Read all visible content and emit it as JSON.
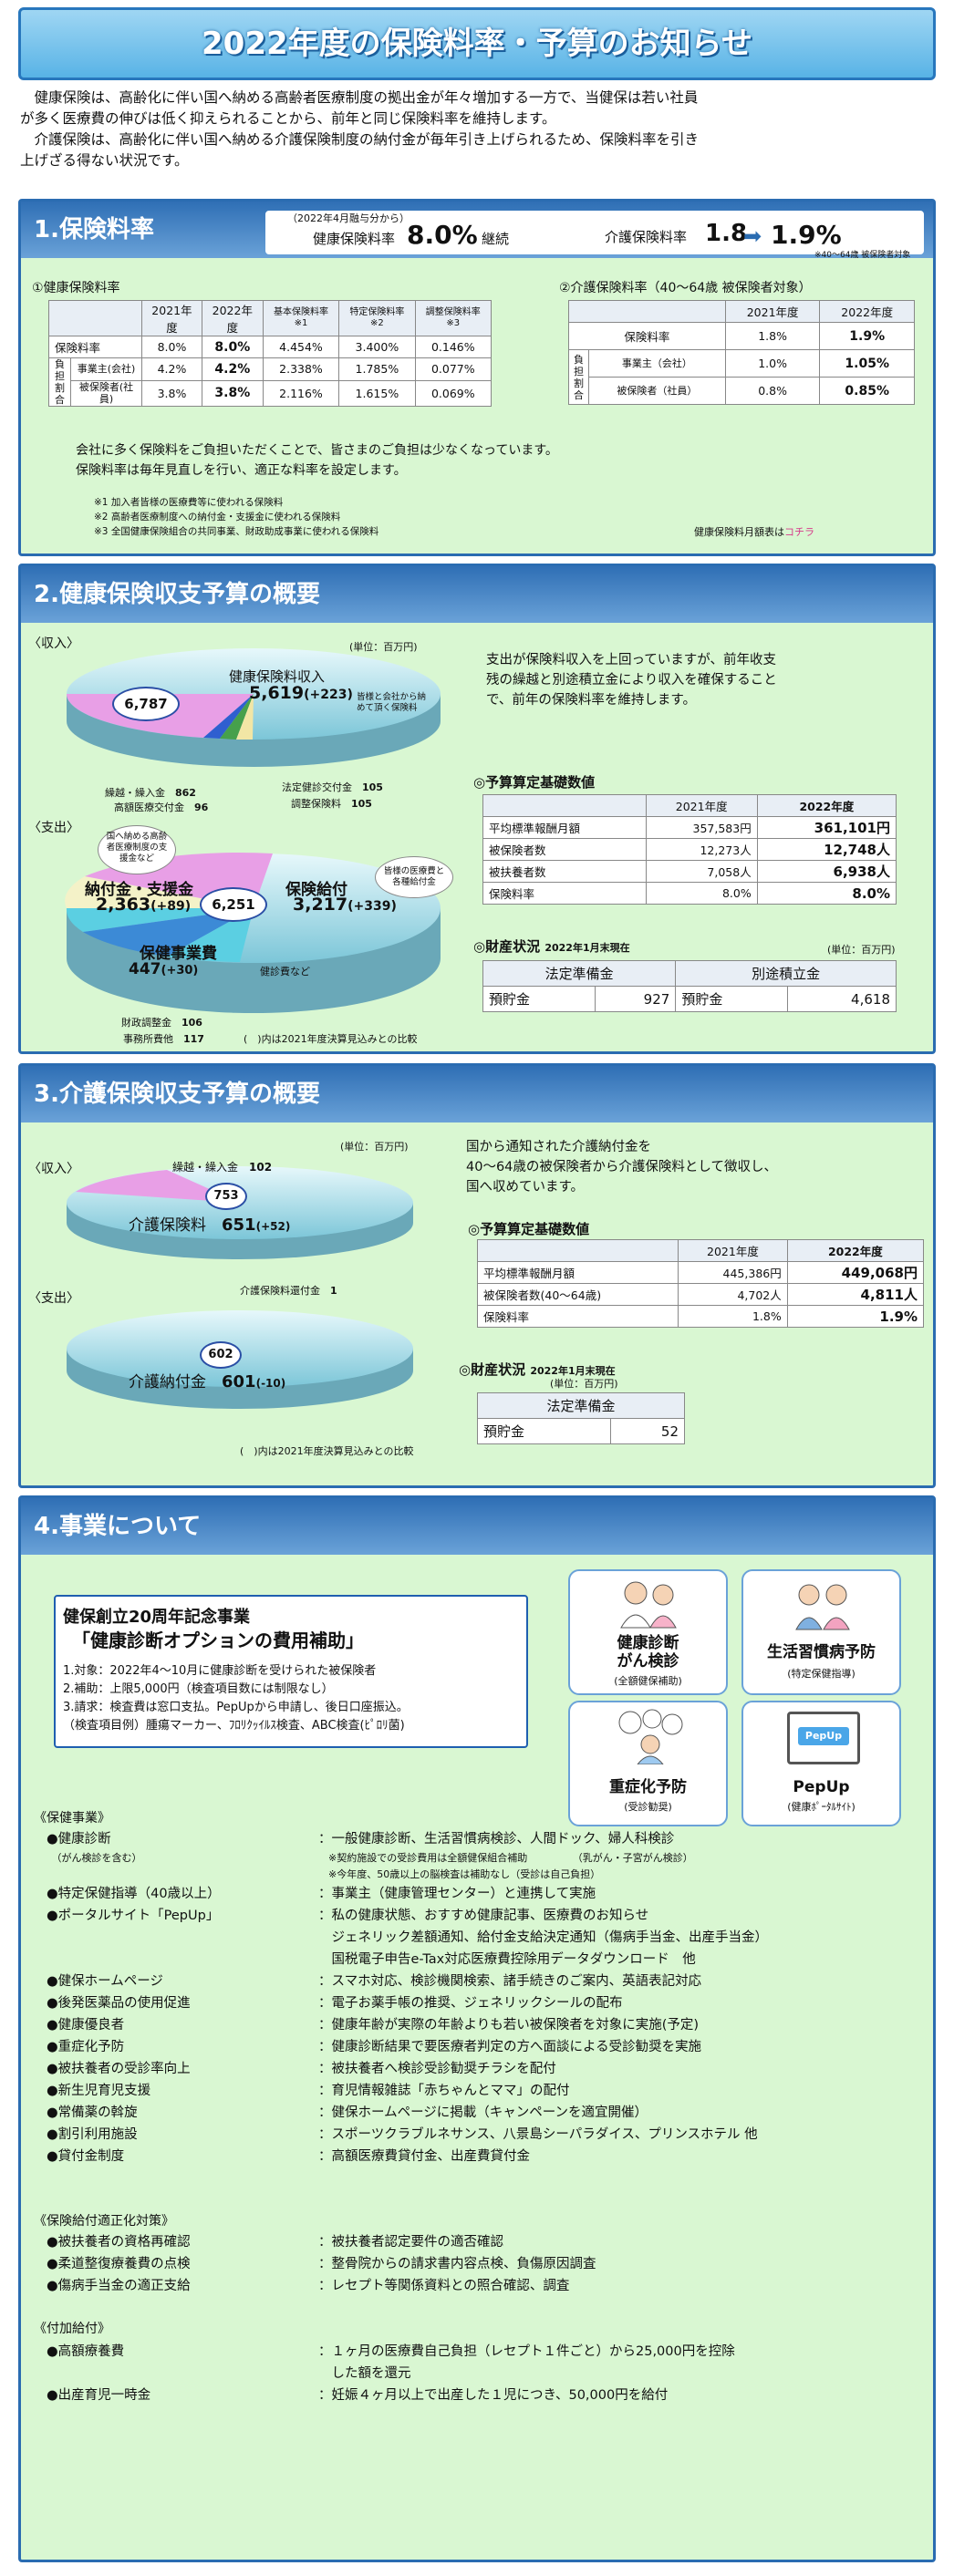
{
  "title": "2022年度の保険料率・予算のお知らせ",
  "intro": [
    "　健康保険は、高齢化に伴い国へ納める高齢者医療制度の拠出金が年々増加する一方で、当健保は若い社員",
    "が多く医療費の伸びは低く抑えられることから、前年と同じ保険料率を維持します。",
    "　介護保険は、高齢化に伴い国へ納める介護保険制度の納付金が毎年引き上げられるため、保険料率を引き",
    "上げざる得ない状況です。"
  ],
  "s1": {
    "title": "1.保険料率",
    "period": "（2022年4月融与分から）",
    "kenpo_label": "健康保険料率",
    "kenpo_rate": "8.0%",
    "kenpo_note": "継続",
    "kaigo_label": "介護保険料率",
    "kaigo_old": "1.8",
    "kaigo_new": "1.9%",
    "kaigo_note": "※40～64歳 被保険者対象",
    "t1_title": "①健康保険料率",
    "t2_title": "②介護保険料率（40～64歳 被保険者対象）",
    "t1": {
      "h": [
        "",
        "",
        "2021年度",
        "2022年度",
        "基本保険料率※1",
        "特定保険料率※2",
        "調整保険料率※3"
      ],
      "rows": [
        [
          "保険料率",
          "8.0%",
          "8.0%",
          "4.454%",
          "3.400%",
          "0.146%"
        ],
        [
          "事業主(会社)",
          "4.2%",
          "4.2%",
          "2.338%",
          "1.785%",
          "0.077%"
        ],
        [
          "被保険者(社員)",
          "3.8%",
          "3.8%",
          "2.116%",
          "1.615%",
          "0.069%"
        ]
      ],
      "side": "負担割合"
    },
    "t2": {
      "h": [
        "",
        "2021年度",
        "2022年度"
      ],
      "rows": [
        [
          "保険料率",
          "1.8%",
          "1.9%"
        ],
        [
          "事業主（会社）",
          "1.0%",
          "1.05%"
        ],
        [
          "被保険者（社員）",
          "0.8%",
          "0.85%"
        ]
      ],
      "side": "負担割合"
    },
    "note1": "会社に多く保険料をご負担いただくことで、皆さまのご負担は少なくなっています。",
    "note2": "保険料率は毎年見直しを行い、適正な料率を設定します。",
    "fn": [
      "※1 加入者皆様の医療費等に使われる保険料",
      "※2 高齢者医療制度への納付金・支援金に使われる保険料",
      "※3 全国健康保険組合の共同事業、財政助成事業に使われる保険料"
    ],
    "link": "健康保険料月額表はコチラ",
    "link_pre": "健康保険料月額表は",
    "link_word": "コチラ"
  },
  "s2": {
    "title": "2.健康保険収支予算の概要",
    "unit": "(単位：百万円)",
    "income": "〈収入〉",
    "expense": "〈支出〉",
    "in_total": "6,787",
    "in_main": "健康保険料収入",
    "in_main_val": "5,619",
    "in_main_diff": "(+223)",
    "in_note": "皆様と会社から納めて頂く保険料",
    "in_small": [
      {
        "label": "繰越・繰入金",
        "val": "862"
      },
      {
        "label": "高額医療交付金",
        "val": "96"
      },
      {
        "label": "法定健診交付金",
        "val": "105"
      },
      {
        "label": "調整保険料",
        "val": "105"
      }
    ],
    "ex_total": "6,251",
    "ex_a": "納付金・支援金",
    "ex_a_val": "2,363",
    "ex_a_diff": "(+89)",
    "ex_a_note": "国へ納める高齢者医療制度の支援金など",
    "ex_b": "保険給付",
    "ex_b_val": "3,217",
    "ex_b_diff": "(+339)",
    "ex_b_note": "皆様の医療費と各種給付金",
    "ex_c": "保健事業費",
    "ex_c_val": "447",
    "ex_c_diff": "(+30)",
    "ex_c_note": "健診費など",
    "ex_small": [
      {
        "label": "財政調整金",
        "val": "106"
      },
      {
        "label": "事務所費他",
        "val": "117"
      }
    ],
    "compare": "(　)内は2021年度決算見込みとの比較",
    "desc": [
      "支出が保険料収入を上回っていますが、前年收支",
      "残の繰越と別途積立金により収入を確保すること",
      "で、前年の保険料率を維持します。"
    ],
    "basis_title": "◎予算算定基礎数値",
    "basis": {
      "h": [
        "",
        "2021年度",
        "2022年度"
      ],
      "rows": [
        [
          "平均標準報酬月額",
          "357,583円",
          "361,101円"
        ],
        [
          "被保険者数",
          "12,273人",
          "12,748人"
        ],
        [
          "被扶養者数",
          "7,058人",
          "6,938人"
        ],
        [
          "保険料率",
          "8.0%",
          "8.0%"
        ]
      ]
    },
    "fin_title": "◎財産状況",
    "fin_date": "2022年1月末現在",
    "fin_unit": "(単位：百万円)",
    "fin": {
      "h": [
        "法定準備金",
        "別途積立金"
      ],
      "r": [
        "預貯金",
        "927",
        "預貯金",
        "4,618"
      ]
    }
  },
  "s3": {
    "title": "3.介護保険収支予算の概要",
    "unit": "(単位：百万円)",
    "income": "〈収入〉",
    "expense": "〈支出〉",
    "in_total": "753",
    "in_small_label": "繰越・繰入金",
    "in_small_val": "102",
    "in_main": "介護保険料",
    "in_main_val": "651",
    "in_main_diff": "(+52)",
    "ex_total": "602",
    "ex_small_label": "介護保険料還付金",
    "ex_small_val": "1",
    "ex_main": "介護納付金",
    "ex_main_val": "601",
    "ex_main_diff": "(-10)",
    "compare": "(　)内は2021年度決算見込みとの比較",
    "desc": [
      "国から通知された介護納付金を",
      "40～64歳の被保険者から介護保険料として徴収し、",
      "国へ収めています。"
    ],
    "basis_title": "◎予算算定基礎数値",
    "basis": {
      "h": [
        "",
        "2021年度",
        "2022年度"
      ],
      "rows": [
        [
          "平均標準報酬月額",
          "445,386円",
          "449,068円"
        ],
        [
          "被保険者数(40～64歳)",
          "4,702人",
          "4,811人"
        ],
        [
          "保険料率",
          "1.8%",
          "1.9%"
        ]
      ]
    },
    "fin_title": "◎財産状況",
    "fin_date": "2022年1月末現在",
    "fin_unit": "(単位：百万円)",
    "fin": {
      "h": "法定準備金",
      "r": [
        "預貯金",
        "52"
      ]
    }
  },
  "s4": {
    "title": "4.事業について",
    "anniv_title": "健保創立20周年記念事業",
    "anniv_sub": "「健康診断オプションの費用補助」",
    "anniv_lines": [
      "1.対象：2022年4～10月に健康診断を受けられた被保険者",
      "2.補助：上限5,000円（検査項目数には制限なし）",
      "3.請求：検査費は窓口支払。PepUpから申請し、後日口座振込。",
      "（検査項目例）腫瘍マーカー、ﾌﾛﾘｸｯｲﾙｽ検査、ABC検査(ﾋﾟﾛﾘ菌)"
    ],
    "icons": [
      {
        "cap": "健康診断",
        "cap2": "がん検診",
        "sub": "(全額健保補助)"
      },
      {
        "cap": "生活習慣病予防",
        "cap2": "",
        "sub": "(特定保健指導)"
      },
      {
        "cap": "重症化予防",
        "cap2": "",
        "sub": "(受診勧奨)"
      },
      {
        "cap": "PepUp",
        "cap2": "",
        "sub": "(健康ﾎﾟｰﾀﾙｻｲﾄ)"
      }
    ],
    "g1_title": "《保健事業》",
    "g1": [
      {
        "k": "●健康診断",
        "v": "：一般健康診断、生活習慣病検診、人間ドック、婦人科検診"
      },
      {
        "k": "　（がん検診を含む）",
        "v": "　※契約施設での受診費用は全額健保組合補助　　　　　（乳がん・子宮がん検診）",
        "small": true
      },
      {
        "k": "",
        "v": "　※今年度、50歳以上の脳検査は補助なし（受診は自己負担）",
        "small": true
      },
      {
        "k": "●特定保健指導（40歳以上）",
        "v": "：事業主（健康管理センター）と連携して実施"
      },
      {
        "k": "●ポータルサイト「PepUp」",
        "v": "：私の健康状態、おすすめ健康記事、医療費のお知らせ"
      },
      {
        "k": "",
        "v": "　ジェネリック差額通知、給付金支給決定通知（傷病手当金、出産手当金）"
      },
      {
        "k": "",
        "v": "　国税電子申告e-Tax対応医療費控除用データダウンロード　他"
      },
      {
        "k": "●健保ホームページ",
        "v": "：スマホ対応、検診機関検索、諸手続きのご案内、英語表記対応"
      },
      {
        "k": "●後発医薬品の使用促進",
        "v": "：電子お薬手帳の推奨、ジェネリックシールの配布"
      },
      {
        "k": "●健康優良者",
        "v": "：健康年齢が実際の年齢よりも若い被保険者を対象に実施(予定)"
      },
      {
        "k": "●重症化予防",
        "v": "：健康診断結果で要医療者判定の方へ面談による受診勧奨を実施"
      },
      {
        "k": "●被扶養者の受診率向上",
        "v": "：被扶養者へ検診受診勧奨チラシを配付"
      },
      {
        "k": "●新生児育児支援",
        "v": "：育児情報雑誌「赤ちゃんとママ」の配付"
      },
      {
        "k": "●常備薬の斡旋",
        "v": "：健保ホームページに掲載（キャンペーンを適宜開催）"
      },
      {
        "k": "●割引利用施設",
        "v": "：スポーツクラブルネサンス、八景島シーパラダイス、プリンスホテル 他"
      },
      {
        "k": "●貸付金制度",
        "v": "：高額医療費貸付金、出産費貸付金"
      }
    ],
    "g2_title": "《保険給付適正化対策》",
    "g2": [
      {
        "k": "●被扶養者の資格再確認",
        "v": "：被扶養者認定要件の適否確認"
      },
      {
        "k": "●柔道整復療養費の点検",
        "v": "：整骨院からの請求書内容点検、負傷原因調査"
      },
      {
        "k": "●傷病手当金の適正支給",
        "v": "：レセプト等関係資料との照合確認、調査"
      }
    ],
    "g3_title": "《付加給付》",
    "g3": [
      {
        "k": "●高額療養費",
        "v": "：１ヶ月の医療費自己負担（レセプト１件ごと）から25,000円を控除"
      },
      {
        "k": "",
        "v": "　した額を還元"
      },
      {
        "k": "●出産育児一時金",
        "v": "：妊娠４ヶ月以上で出産した１児につき、50,000円を給付"
      }
    ]
  }
}
